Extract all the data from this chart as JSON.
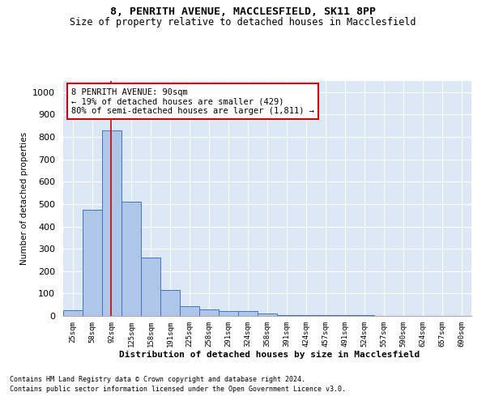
{
  "title": "8, PENRITH AVENUE, MACCLESFIELD, SK11 8PP",
  "subtitle": "Size of property relative to detached houses in Macclesfield",
  "xlabel": "Distribution of detached houses by size in Macclesfield",
  "ylabel": "Number of detached properties",
  "categories": [
    "25sqm",
    "58sqm",
    "92sqm",
    "125sqm",
    "158sqm",
    "191sqm",
    "225sqm",
    "258sqm",
    "291sqm",
    "324sqm",
    "358sqm",
    "391sqm",
    "424sqm",
    "457sqm",
    "491sqm",
    "524sqm",
    "557sqm",
    "590sqm",
    "624sqm",
    "657sqm",
    "690sqm"
  ],
  "values": [
    25,
    475,
    830,
    510,
    260,
    115,
    45,
    30,
    20,
    20,
    10,
    5,
    5,
    3,
    2,
    2,
    0,
    0,
    0,
    0,
    0
  ],
  "bar_color": "#aec6e8",
  "bar_edge_color": "#4472c4",
  "background_color": "#dce8f5",
  "grid_color": "#ffffff",
  "property_line_color": "#cc0000",
  "annotation_text": "8 PENRITH AVENUE: 90sqm\n← 19% of detached houses are smaller (429)\n80% of semi-detached houses are larger (1,811) →",
  "annotation_box_color": "#cc0000",
  "footnote1": "Contains HM Land Registry data © Crown copyright and database right 2024.",
  "footnote2": "Contains public sector information licensed under the Open Government Licence v3.0.",
  "ylim": [
    0,
    1050
  ],
  "yticks": [
    0,
    100,
    200,
    300,
    400,
    500,
    600,
    700,
    800,
    900,
    1000
  ]
}
